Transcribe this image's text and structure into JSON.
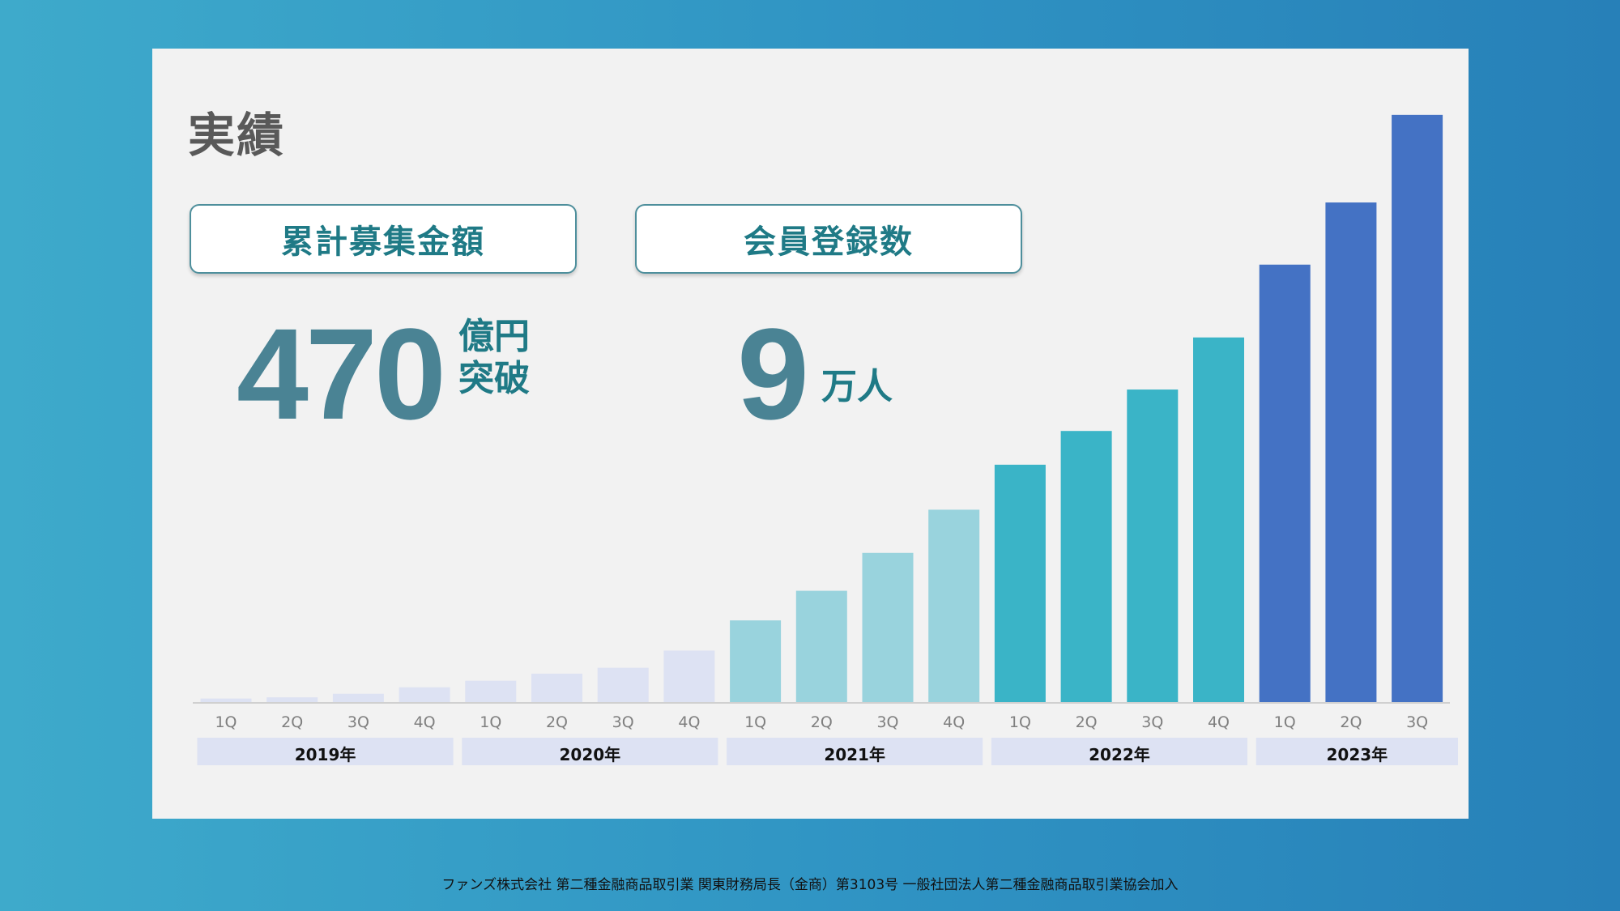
{
  "title": "実績",
  "metrics": [
    {
      "label": "累計募集金額",
      "value": "470",
      "unit_line1": "億円",
      "unit_line2": "突破"
    },
    {
      "label": "会員登録数",
      "value": "9",
      "unit_line1": "万人",
      "unit_line2": ""
    }
  ],
  "footer": "ファンズ株式会社 第二種金融商品取引業 関東財務局長（金商）第3103号 一般社団法人第二種金融商品取引業協会加入",
  "colors": {
    "2019": "#dde2f3",
    "2020": "#dde2f3",
    "2021": "#99d3dd",
    "2022": "#3ab4c7",
    "2023": "#4472c4",
    "year_band": "#dde2f3"
  },
  "chart_data": {
    "type": "bar",
    "categories": [
      "1Q",
      "2Q",
      "3Q",
      "4Q",
      "1Q",
      "2Q",
      "3Q",
      "4Q",
      "1Q",
      "2Q",
      "3Q",
      "4Q",
      "1Q",
      "2Q",
      "3Q",
      "4Q",
      "1Q",
      "2Q",
      "3Q"
    ],
    "values": [
      0.6,
      0.8,
      1.4,
      2.5,
      3.6,
      4.8,
      5.8,
      8.7,
      13.8,
      18.8,
      25.2,
      32.5,
      40.1,
      45.8,
      52.8,
      61.6,
      73.9,
      84.4,
      99.2
    ],
    "groups": [
      {
        "label": "2019年",
        "start": 0,
        "count": 4
      },
      {
        "label": "2020年",
        "start": 4,
        "count": 4
      },
      {
        "label": "2021年",
        "start": 8,
        "count": 4
      },
      {
        "label": "2022年",
        "start": 12,
        "count": 4
      },
      {
        "label": "2023年",
        "start": 16,
        "count": 3
      }
    ],
    "bar_group_keys": [
      "2019",
      "2019",
      "2019",
      "2019",
      "2020",
      "2020",
      "2020",
      "2020",
      "2021",
      "2021",
      "2021",
      "2021",
      "2022",
      "2022",
      "2022",
      "2022",
      "2023",
      "2023",
      "2023"
    ],
    "ylim": [
      0,
      100
    ],
    "title": "",
    "xlabel": "",
    "ylabel": "",
    "grid": false
  }
}
